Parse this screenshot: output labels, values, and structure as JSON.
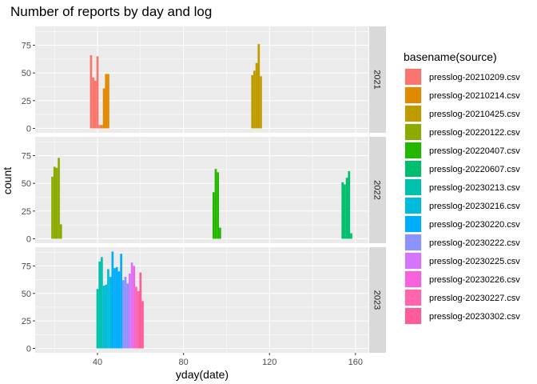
{
  "chart_data": {
    "type": "bar",
    "title": "Number of reports by day and log",
    "xlabel": "yday(date)",
    "ylabel": "count",
    "xlim": [
      11,
      166
    ],
    "ylim": [
      -4,
      92
    ],
    "x_ticks": [
      40,
      80,
      120,
      160
    ],
    "y_ticks": [
      0,
      25,
      50,
      75
    ],
    "legend": {
      "title": "basename(source)",
      "placement": "right",
      "entries": [
        {
          "name": "presslog-20210209.csv",
          "color": "#F8766D"
        },
        {
          "name": "presslog-20210214.csv",
          "color": "#E18A00"
        },
        {
          "name": "presslog-20210425.csv",
          "color": "#BE9C00"
        },
        {
          "name": "presslog-20220122.csv",
          "color": "#8CAB00"
        },
        {
          "name": "presslog-20220407.csv",
          "color": "#24B700"
        },
        {
          "name": "presslog-20220607.csv",
          "color": "#00BE70"
        },
        {
          "name": "presslog-20230213.csv",
          "color": "#00C1AB"
        },
        {
          "name": "presslog-20230216.csv",
          "color": "#00BBDA"
        },
        {
          "name": "presslog-20230220.csv",
          "color": "#00ACFC"
        },
        {
          "name": "presslog-20230222.csv",
          "color": "#8B93FF"
        },
        {
          "name": "presslog-20230225.csv",
          "color": "#D575FE"
        },
        {
          "name": "presslog-20230226.csv",
          "color": "#F962DD"
        },
        {
          "name": "presslog-20230227.csv",
          "color": "#FF65AC"
        },
        {
          "name": "presslog-20230302.csv",
          "color": "#FF5B9A"
        }
      ]
    },
    "facets": [
      {
        "label": "2021",
        "bars": [
          {
            "x": 37,
            "count": 66,
            "source": 0
          },
          {
            "x": 38,
            "count": 46,
            "source": 0
          },
          {
            "x": 39,
            "count": 43,
            "source": 0
          },
          {
            "x": 40,
            "count": 65,
            "source": 0
          },
          {
            "x": 41,
            "count": 3,
            "source": 0
          },
          {
            "x": 42,
            "count": 3,
            "source": 1
          },
          {
            "x": 43,
            "count": 36,
            "source": 1
          },
          {
            "x": 44,
            "count": 49,
            "source": 1
          },
          {
            "x": 45,
            "count": 49,
            "source": 1
          },
          {
            "x": 112,
            "count": 48,
            "source": 2
          },
          {
            "x": 113,
            "count": 52,
            "source": 2
          },
          {
            "x": 114,
            "count": 59,
            "source": 2
          },
          {
            "x": 115,
            "count": 76,
            "source": 2
          },
          {
            "x": 116,
            "count": 47,
            "source": 2
          }
        ]
      },
      {
        "label": "2022",
        "bars": [
          {
            "x": 19,
            "count": 56,
            "source": 3
          },
          {
            "x": 20,
            "count": 65,
            "source": 3
          },
          {
            "x": 21,
            "count": 64,
            "source": 3
          },
          {
            "x": 22,
            "count": 73,
            "source": 3
          },
          {
            "x": 23,
            "count": 13,
            "source": 3
          },
          {
            "x": 94,
            "count": 42,
            "source": 4
          },
          {
            "x": 95,
            "count": 63,
            "source": 4
          },
          {
            "x": 96,
            "count": 60,
            "source": 4
          },
          {
            "x": 97,
            "count": 10,
            "source": 4
          },
          {
            "x": 154,
            "count": 51,
            "source": 5
          },
          {
            "x": 155,
            "count": 49,
            "source": 5
          },
          {
            "x": 156,
            "count": 55,
            "source": 5
          },
          {
            "x": 157,
            "count": 61,
            "source": 5
          },
          {
            "x": 158,
            "count": 5,
            "source": 5
          }
        ]
      },
      {
        "label": "2023",
        "bars": [
          {
            "x": 40,
            "count": 54,
            "source": 6
          },
          {
            "x": 41,
            "count": 79,
            "source": 6
          },
          {
            "x": 42,
            "count": 83,
            "source": 6
          },
          {
            "x": 43,
            "count": 57,
            "source": 7
          },
          {
            "x": 44,
            "count": 58,
            "source": 7
          },
          {
            "x": 45,
            "count": 72,
            "source": 7
          },
          {
            "x": 46,
            "count": 65,
            "source": 7
          },
          {
            "x": 47,
            "count": 88,
            "source": 8
          },
          {
            "x": 48,
            "count": 73,
            "source": 8
          },
          {
            "x": 49,
            "count": 74,
            "source": 8
          },
          {
            "x": 50,
            "count": 70,
            "source": 8
          },
          {
            "x": 51,
            "count": 86,
            "source": 8
          },
          {
            "x": 52,
            "count": 62,
            "source": 9
          },
          {
            "x": 53,
            "count": 65,
            "source": 9
          },
          {
            "x": 54,
            "count": 59,
            "source": 9
          },
          {
            "x": 55,
            "count": 68,
            "source": 10
          },
          {
            "x": 56,
            "count": 78,
            "source": 10
          },
          {
            "x": 57,
            "count": 75,
            "source": 11
          },
          {
            "x": 58,
            "count": 56,
            "source": 12
          },
          {
            "x": 59,
            "count": 52,
            "source": 12
          },
          {
            "x": 60,
            "count": 69,
            "source": 13
          },
          {
            "x": 61,
            "count": 43,
            "source": 13
          }
        ]
      }
    ]
  }
}
